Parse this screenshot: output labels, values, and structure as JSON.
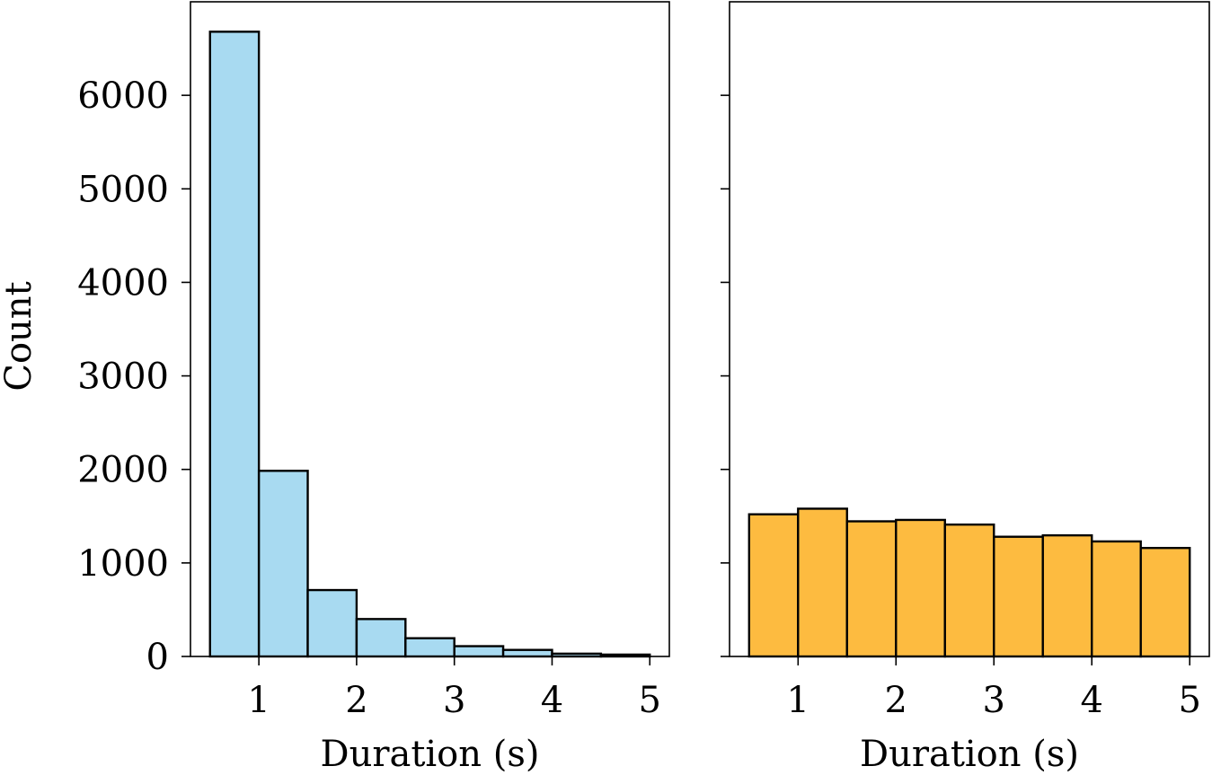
{
  "chart_data": [
    {
      "type": "bar",
      "histogram": true,
      "bin_edges": [
        0.5,
        1.0,
        1.5,
        2.0,
        2.5,
        3.0,
        3.5,
        4.0,
        4.5,
        5.0
      ],
      "values": [
        6680,
        1985,
        710,
        400,
        195,
        110,
        70,
        30,
        20
      ],
      "color": "#a8daf1",
      "xlabel": "Duration (s)",
      "ylabel": "Count",
      "xlim": [
        0.3,
        5.2
      ],
      "ylim": [
        0,
        7000
      ],
      "xticks": [
        1,
        2,
        3,
        4,
        5
      ],
      "yticks": [
        0,
        1000,
        2000,
        3000,
        4000,
        5000,
        6000
      ],
      "show_ytick_labels": true
    },
    {
      "type": "bar",
      "histogram": true,
      "bin_edges": [
        0.5,
        1.0,
        1.5,
        2.0,
        2.5,
        3.0,
        3.5,
        4.0,
        4.5,
        5.0
      ],
      "values": [
        1520,
        1580,
        1445,
        1460,
        1410,
        1280,
        1295,
        1230,
        1160
      ],
      "color": "#fdbb40",
      "xlabel": "Duration (s)",
      "ylabel": "",
      "xlim": [
        0.3,
        5.2
      ],
      "ylim": [
        0,
        7000
      ],
      "xticks": [
        1,
        2,
        3,
        4,
        5
      ],
      "yticks": [
        0,
        1000,
        2000,
        3000,
        4000,
        5000,
        6000
      ],
      "show_ytick_labels": false
    }
  ]
}
